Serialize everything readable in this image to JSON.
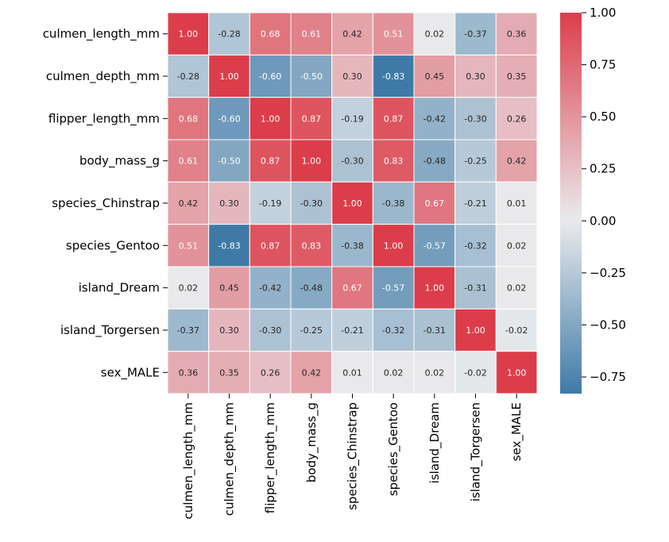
{
  "chart_data": {
    "type": "heatmap",
    "title": "",
    "xlabel": "",
    "ylabel": "",
    "rows": [
      "culmen_length_mm",
      "culmen_depth_mm",
      "flipper_length_mm",
      "body_mass_g",
      "species_Chinstrap",
      "species_Gentoo",
      "island_Dream",
      "island_Torgersen",
      "sex_MALE"
    ],
    "columns": [
      "culmen_length_mm",
      "culmen_depth_mm",
      "flipper_length_mm",
      "body_mass_g",
      "species_Chinstrap",
      "species_Gentoo",
      "island_Dream",
      "island_Torgersen",
      "sex_MALE"
    ],
    "values": [
      [
        1.0,
        -0.28,
        0.68,
        0.61,
        0.42,
        0.51,
        0.02,
        -0.37,
        0.36
      ],
      [
        -0.28,
        1.0,
        -0.6,
        -0.5,
        0.3,
        -0.83,
        0.45,
        0.3,
        0.35
      ],
      [
        0.68,
        -0.6,
        1.0,
        0.87,
        -0.19,
        0.87,
        -0.42,
        -0.3,
        0.26
      ],
      [
        0.61,
        -0.5,
        0.87,
        1.0,
        -0.3,
        0.83,
        -0.48,
        -0.25,
        0.42
      ],
      [
        0.42,
        0.3,
        -0.19,
        -0.3,
        1.0,
        -0.38,
        0.67,
        -0.21,
        0.01
      ],
      [
        0.51,
        -0.83,
        0.87,
        0.83,
        -0.38,
        1.0,
        -0.57,
        -0.32,
        0.02
      ],
      [
        0.02,
        0.45,
        -0.42,
        -0.48,
        0.67,
        -0.57,
        1.0,
        -0.31,
        0.02
      ],
      [
        -0.37,
        0.3,
        -0.3,
        -0.25,
        -0.21,
        -0.32,
        -0.31,
        1.0,
        -0.02
      ],
      [
        0.36,
        0.35,
        0.26,
        0.42,
        0.01,
        0.02,
        0.02,
        -0.02,
        1.0
      ]
    ],
    "labels": [
      [
        "1.00",
        "-0.28",
        "0.68",
        "0.61",
        "0.42",
        "0.51",
        "0.02",
        "-0.37",
        "0.36"
      ],
      [
        "-0.28",
        "1.00",
        "-0.60",
        "-0.50",
        "0.30",
        "-0.83",
        "0.45",
        "0.30",
        "0.35"
      ],
      [
        "0.68",
        "-0.60",
        "1.00",
        "0.87",
        "-0.19",
        "0.87",
        "-0.42",
        "-0.30",
        "0.26"
      ],
      [
        "0.61",
        "-0.50",
        "0.87",
        "1.00",
        "-0.30",
        "0.83",
        "-0.48",
        "-0.25",
        "0.42"
      ],
      [
        "0.42",
        "0.30",
        "-0.19",
        "-0.30",
        "1.00",
        "-0.38",
        "0.67",
        "-0.21",
        "0.01"
      ],
      [
        "0.51",
        "-0.83",
        "0.87",
        "0.83",
        "-0.38",
        "1.00",
        "-0.57",
        "-0.32",
        "0.02"
      ],
      [
        "0.02",
        "0.45",
        "-0.42",
        "-0.48",
        "0.67",
        "-0.57",
        "1.00",
        "-0.31",
        "0.02"
      ],
      [
        "-0.37",
        "0.30",
        "-0.30",
        "-0.25",
        "-0.21",
        "-0.32",
        "-0.31",
        "1.00",
        "-0.02"
      ],
      [
        "0.36",
        "0.35",
        "0.26",
        "0.42",
        "0.01",
        "0.02",
        "0.02",
        "-0.02",
        "1.00"
      ]
    ],
    "colorbar": {
      "vmin": -0.83,
      "vmax": 1.0,
      "ticks": [
        1.0,
        0.75,
        0.5,
        0.25,
        0.0,
        -0.25,
        -0.5,
        -0.75
      ],
      "tick_labels": [
        "1.00",
        "0.75",
        "0.50",
        "0.25",
        "0.00",
        "−0.25",
        "−0.50",
        "−0.75"
      ]
    },
    "colors": {
      "negative": "#3f7aa6",
      "neutral": "#e9ebed",
      "positive": "#dc3d4a",
      "cell_border": "#ffffff",
      "text_dark": "#262626",
      "text_light": "#ffffff"
    },
    "grid": false,
    "legend": "right"
  }
}
